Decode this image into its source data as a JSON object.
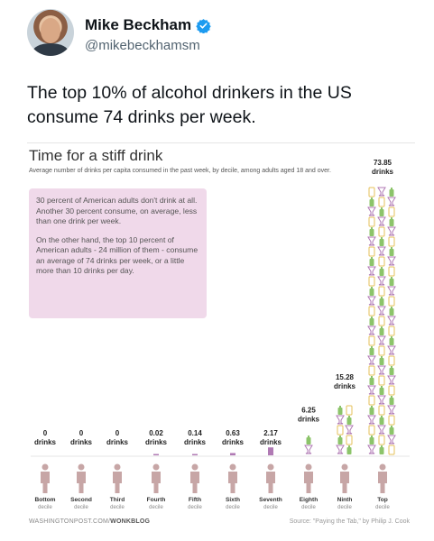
{
  "tweet": {
    "name": "Mike Beckham",
    "handle": "@mikebeckhamsm",
    "text": "The top 10% of alcohol drinkers in the US consume 74 drinks per week."
  },
  "colors": {
    "note_bg": "#f0d9ea",
    "glass_purple": "#b07ab4",
    "bottle_green": "#8cc46a",
    "can_yellow": "#e6c05a",
    "person": "#c7a6a6"
  },
  "chart": {
    "title": "Time for a stiff drink",
    "subtitle": "Average number of drinks per capita consumed in the past week, by decile, among adults aged 18 and over.",
    "note_p1": "30 percent of American adults don't drink at all. Another 30 percent consume, on average, less than one drink per week.",
    "note_p2": "On the other hand, the top 10 percent of American adults - 24 million of them - consume an average of 74 drinks per week, or a little more than 10 drinks per day.",
    "footer_site": "WASHINGTONPOST.COM/",
    "footer_blog": "WONKBLOG",
    "source": "Source: \"Paying the Tab,\" by Philip J. Cook",
    "unit": "drinks"
  },
  "chart_data": {
    "type": "bar",
    "title": "Time for a stiff drink",
    "subtitle": "Average number of drinks per capita consumed in the past week, by decile, among adults aged 18 and over.",
    "categories": [
      [
        "Bottom",
        "decile"
      ],
      [
        "Second",
        "decile"
      ],
      [
        "Third",
        "decile"
      ],
      [
        "Fourth",
        "decile"
      ],
      [
        "Fifth",
        "decile"
      ],
      [
        "Sixth",
        "decile"
      ],
      [
        "Seventh",
        "decile"
      ],
      [
        "Eighth",
        "decile"
      ],
      [
        "Ninth",
        "decile"
      ],
      [
        "Top",
        "decile"
      ]
    ],
    "values": [
      0,
      0,
      0,
      0.02,
      0.14,
      0.63,
      2.17,
      6.25,
      15.28,
      73.85
    ],
    "labels": [
      "0",
      "0",
      "0",
      "0.02",
      "0.14",
      "0.63",
      "2.17",
      "6.25",
      "15.28",
      "73.85"
    ]
  }
}
